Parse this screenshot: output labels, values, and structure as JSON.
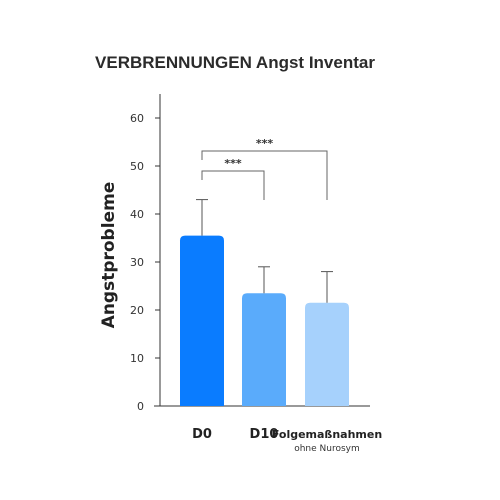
{
  "chart_data": {
    "type": "bar",
    "title": "VERBRENNUNGEN Angst Inventar",
    "ylabel": "Angstprobleme",
    "xlabel": "",
    "ylim": [
      0,
      60
    ],
    "yticks": [
      0,
      10,
      20,
      30,
      40,
      50,
      60
    ],
    "categories": [
      {
        "label": "D0",
        "sublabel": ""
      },
      {
        "label": "D10",
        "sublabel": ""
      },
      {
        "label": "Folgemaßnahmen",
        "sublabel": "ohne Nurosym"
      }
    ],
    "values": [
      35.5,
      23.5,
      21.5
    ],
    "error_upper": [
      43,
      29,
      28
    ],
    "colors": [
      "#0a7cff",
      "#5aabfb",
      "#a6d1fc"
    ],
    "significance": [
      {
        "from": 0,
        "to": 1,
        "label": "***"
      },
      {
        "from": 0,
        "to": 2,
        "label": "***"
      }
    ],
    "grid": false
  }
}
